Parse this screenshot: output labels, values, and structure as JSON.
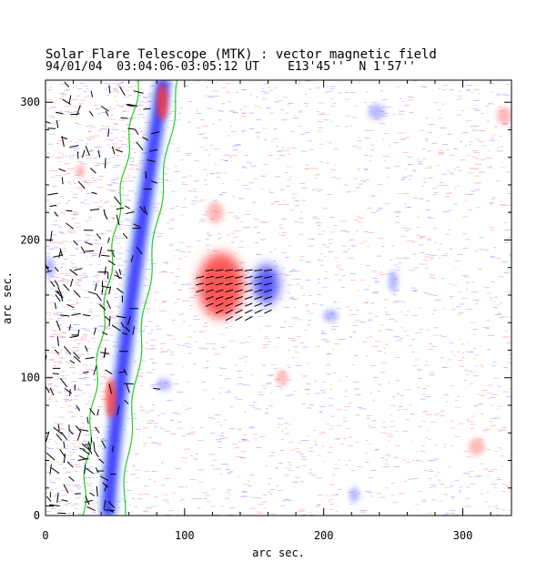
{
  "header": {
    "title": "Solar Flare Telescope (MTK) : vector magnetic field",
    "subtitle": "94/01/04  03:04:06-03:05:12 UT    E13'45''  N 1'57''"
  },
  "chart_data": {
    "type": "heatmap",
    "xlabel": "arc sec.",
    "ylabel": "arc sec.",
    "xlim": [
      0,
      335
    ],
    "ylim": [
      0,
      316
    ],
    "x_ticks": [
      0,
      100,
      200,
      300
    ],
    "y_ticks": [
      0,
      100,
      200,
      300
    ],
    "colors": {
      "positive_polarity": "#ff3b3b",
      "negative_polarity": "#3b3bff",
      "limb_contour": "#22cc22",
      "transverse_vectors": "#000000"
    }
  }
}
